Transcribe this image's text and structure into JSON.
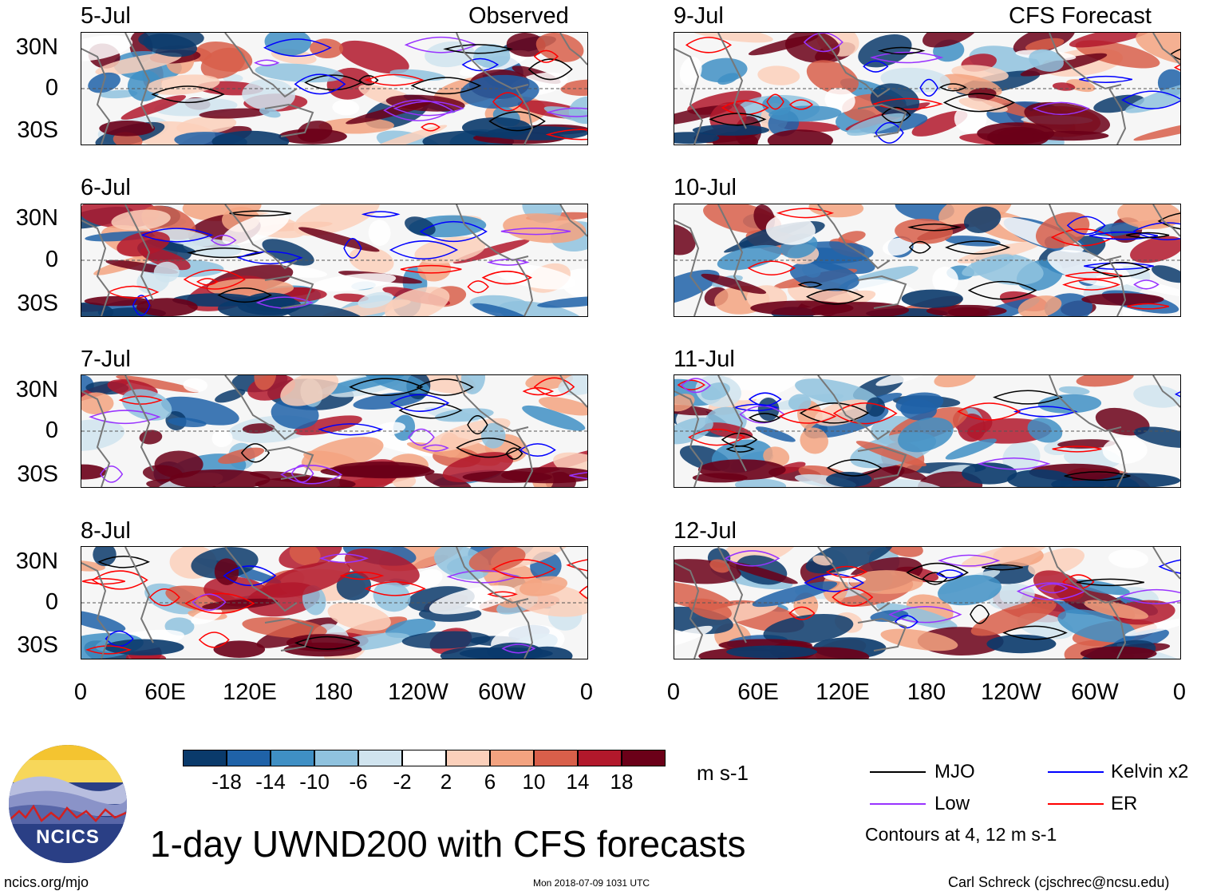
{
  "title": "1-day UWND200 with CFS forecasts",
  "footer": {
    "left": "ncics.org/mjo",
    "center": "Mon 2018-07-09 1031 UTC",
    "right": "Carl Schreck (cjschrec@ncsu.edu)"
  },
  "logo": {
    "text": "NCICS",
    "icon": "ncics-logo-icon"
  },
  "columns": {
    "observed_label": "Observed",
    "forecast_label": "CFS Forecast"
  },
  "panels": {
    "observed": [
      "5-Jul",
      "6-Jul",
      "7-Jul",
      "8-Jul"
    ],
    "forecast": [
      "9-Jul",
      "10-Jul",
      "11-Jul",
      "12-Jul"
    ]
  },
  "axes": {
    "lat_ticks": [
      "30N",
      "0",
      "30S"
    ],
    "lon_ticks": [
      "0",
      "60E",
      "120E",
      "180",
      "120W",
      "60W",
      "0"
    ]
  },
  "colorbar": {
    "unit": "m s-1",
    "tick_labels": [
      "-18",
      "-14",
      "-10",
      "-6",
      "-2",
      "2",
      "6",
      "10",
      "14",
      "18"
    ],
    "colors": [
      "#0a3a6b",
      "#1f62a8",
      "#3f8fc4",
      "#8fc2de",
      "#d0e4ef",
      "#ffffff",
      "#fbd0bb",
      "#f3a380",
      "#d85f4a",
      "#b2182b",
      "#6b0018"
    ]
  },
  "legend": {
    "items": [
      {
        "label": "MJO",
        "color": "#000000"
      },
      {
        "label": "Kelvin x2",
        "color": "#0000ff"
      },
      {
        "label": "Low",
        "color": "#9933ff"
      },
      {
        "label": "ER",
        "color": "#ff0000"
      }
    ],
    "note": "Contours at 4, 12 m s-1"
  },
  "chart_data": {
    "type": "heatmap",
    "variable": "UWND200",
    "units": "m s-1",
    "x_range": [
      0,
      360
    ],
    "y_range": [
      -40,
      40
    ],
    "levels": [
      -18,
      -14,
      -10,
      -6,
      -2,
      2,
      6,
      10,
      14,
      18
    ],
    "contour_levels": [
      4,
      12
    ],
    "panels": [
      "5-Jul",
      "6-Jul",
      "7-Jul",
      "8-Jul",
      "9-Jul",
      "10-Jul",
      "11-Jul",
      "12-Jul"
    ]
  }
}
